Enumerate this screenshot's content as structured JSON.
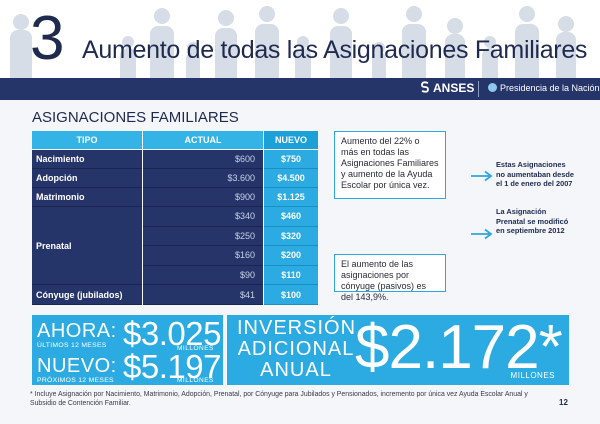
{
  "header": {
    "number": "3",
    "title": "Aumento de todas las Asignaciones Familiares"
  },
  "nav": {
    "anses": "ANSES",
    "presidencia": "Presidencia de la Nación"
  },
  "section_title": "ASIGNACIONES FAMILIARES",
  "table": {
    "headers": {
      "tipo": "TIPO",
      "actual": "ACTUAL",
      "nuevo": "NUEVO"
    },
    "rows": [
      {
        "tipo": "Nacimiento",
        "actual": "$600",
        "nuevo": "$750"
      },
      {
        "tipo": "Adopción",
        "actual": "$3.600",
        "nuevo": "$4.500"
      },
      {
        "tipo": "Matrimonio",
        "actual": "$900",
        "nuevo": "$1.125"
      },
      {
        "tipo": "Prenatal",
        "actual": [
          "$340",
          "$250",
          "$160",
          "$90"
        ],
        "nuevo": [
          "$460",
          "$320",
          "$200",
          "$110"
        ]
      },
      {
        "tipo": "Cónyuge (jubilados)",
        "actual": "$41",
        "nuevo": "$100"
      }
    ]
  },
  "notes": {
    "aumento": "Aumento del 22% o más en todas las Asignaciones Familiares y aumento de la Ayuda Escolar por única vez.",
    "conyuge": "El aumento de las asignaciones por cónyuge (pasivos) es del 143,9%."
  },
  "callouts": {
    "first": "Estas Asignaciones no aumentaban desde el 1 de enero del 2007",
    "second": "La Asignación Prenatal se modificó en septiembre 2012"
  },
  "bottom": {
    "ahora_label": "AHORA:",
    "ahora_sub": "ÚLTIMOS 12 MESES",
    "ahora_value": "$3.025",
    "ahora_millones": "MILLONES",
    "nuevo_label": "NUEVO:",
    "nuevo_sub": "PRÓXIMOS 12 MESES",
    "nuevo_value": "$5.197",
    "nuevo_millones": "MILLONES",
    "inversion": [
      "INVERSIÓN",
      "ADICIONAL",
      "ANUAL"
    ],
    "total": "$2.172*",
    "total_millones": "MILLONES"
  },
  "footnote": "* Incluye Asignación por Nacimiento, Matrimonio, Adopción, Prenatal, por Cónyuge para Jubilados y Pensionados, incremento por única vez Ayuda Escolar Anual y Subsidio de Contención Familiar.",
  "page_number": "12",
  "colors": {
    "navy": "#263569",
    "blue": "#2cabe3",
    "dark_text": "#1f2a4f"
  }
}
